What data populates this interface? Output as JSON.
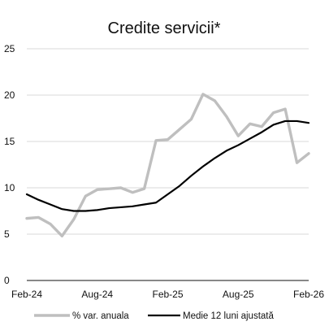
{
  "chart_data": {
    "type": "line",
    "title": "Credite servicii*",
    "xlabel": "",
    "ylabel": "",
    "ylim": [
      0,
      25
    ],
    "yticks": [
      0,
      5,
      10,
      15,
      20,
      25
    ],
    "xtick_labels": [
      "Feb-24",
      "Aug-24",
      "Feb-25",
      "Aug-25",
      "Feb-26"
    ],
    "grid": true,
    "legend_position": "bottom",
    "x": [
      "Feb-24",
      "Mar-24",
      "Apr-24",
      "May-24",
      "Jun-24",
      "Jul-24",
      "Aug-24",
      "Sep-24",
      "Oct-24",
      "Nov-24",
      "Dec-24",
      "Jan-25",
      "Feb-25",
      "Mar-25",
      "Apr-25",
      "May-25",
      "Jun-25",
      "Jul-25",
      "Aug-25",
      "Sep-25",
      "Oct-25",
      "Nov-25",
      "Dec-25",
      "Jan-26",
      "Feb-26"
    ],
    "series": [
      {
        "name": "% var. anuala",
        "color": "#bfbfbf",
        "values": [
          6.7,
          6.8,
          6.1,
          4.8,
          6.6,
          9.1,
          9.8,
          9.9,
          10.0,
          9.5,
          9.9,
          15.1,
          15.2,
          16.3,
          17.4,
          20.1,
          19.4,
          17.7,
          15.6,
          16.9,
          16.6,
          18.1,
          18.5,
          12.7,
          13.7
        ]
      },
      {
        "name": "Medie 12 luni ajustată",
        "color": "#000000",
        "values": [
          9.3,
          8.7,
          8.2,
          7.7,
          7.5,
          7.5,
          7.6,
          7.8,
          7.9,
          8.0,
          8.2,
          8.4,
          9.3,
          10.2,
          11.3,
          12.3,
          13.2,
          14.0,
          14.6,
          15.3,
          16.0,
          16.8,
          17.2,
          17.2,
          17.0
        ]
      }
    ]
  }
}
